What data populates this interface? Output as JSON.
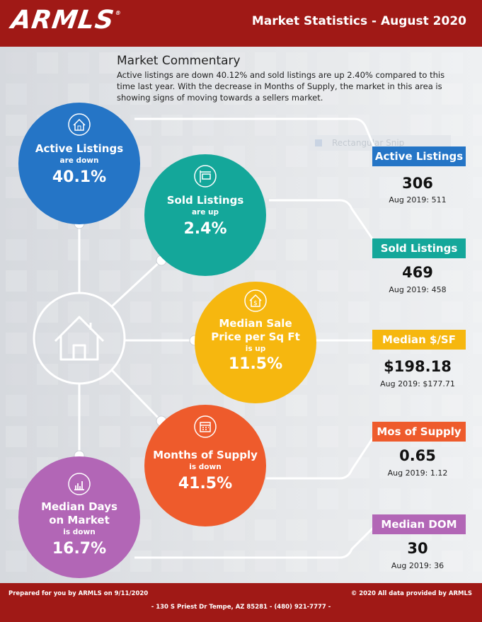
{
  "header": {
    "logo": "ARMLS",
    "logo_mark": "®",
    "title": "Market Statistics - August 2020",
    "bg": "#a01916"
  },
  "commentary": {
    "title": "Market Commentary",
    "text": "Active listings are down 40.12% and sold listings are up 2.40% compared to this time last year. With the decrease in Months of Supply, the market in this area is showing signs of moving towards a sellers market."
  },
  "ghost_label": "Rectangular Snip",
  "circles": {
    "active": {
      "name": "Active Listings",
      "dir": "are down",
      "pct": "40.1%",
      "color": "#2575c6",
      "icon": "house-icon"
    },
    "sold": {
      "name": "Sold Listings",
      "dir": "are up",
      "pct": "2.4%",
      "color": "#14a79a",
      "icon": "sold-sign-icon"
    },
    "median_price_line1": "Median Sale",
    "median_price": {
      "name": "Price per Sq Ft",
      "dir": "is up",
      "pct": "11.5%",
      "color": "#f6b70f",
      "icon": "house-dollar-icon"
    },
    "supply": {
      "name": "Months of Supply",
      "dir": "is down",
      "pct": "41.5%",
      "color": "#ee5b2c",
      "icon": "calendar-icon"
    },
    "dom_line1": "Median Days",
    "dom": {
      "name": "on Market",
      "dir": "is down",
      "pct": "16.7%",
      "color": "#b266b6",
      "icon": "bar-chart-icon"
    }
  },
  "stats": {
    "active": {
      "label": "Active Listings",
      "value": "306",
      "prev": "Aug 2019: 511",
      "color": "#2575c6"
    },
    "sold": {
      "label": "Sold Listings",
      "value": "469",
      "prev": "Aug 2019: 458",
      "color": "#14a79a"
    },
    "median": {
      "label": "Median $/SF",
      "value": "$198.18",
      "prev": "Aug 2019: $177.71",
      "color": "#f6b70f"
    },
    "supply": {
      "label": "Mos of Supply",
      "value": "0.65",
      "prev": "Aug 2019: 1.12",
      "color": "#ee5b2c"
    },
    "dom": {
      "label": "Median DOM",
      "value": "30",
      "prev": "Aug 2019: 36",
      "color": "#b266b6"
    }
  },
  "footer": {
    "prepared": "Prepared for you by ARMLS on 9/11/2020",
    "copyright": "© 2020 All data provided by ARMLS",
    "address": "- 130 S Priest Dr   Tempe, AZ 85281 - (480) 921-7777 -"
  }
}
